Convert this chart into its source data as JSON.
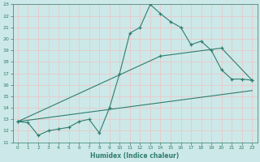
{
  "xlabel": "Humidex (Indice chaleur)",
  "xlim": [
    -0.5,
    23.5
  ],
  "ylim": [
    11,
    23
  ],
  "xticks": [
    0,
    1,
    2,
    3,
    4,
    5,
    6,
    7,
    8,
    9,
    10,
    11,
    12,
    13,
    14,
    15,
    16,
    17,
    18,
    19,
    20,
    21,
    22,
    23
  ],
  "yticks": [
    11,
    12,
    13,
    14,
    15,
    16,
    17,
    18,
    19,
    20,
    21,
    22,
    23
  ],
  "bg_color": "#cde8e8",
  "grid_color": "#e8c8c8",
  "line_color": "#2e7d6e",
  "lines": [
    {
      "x": [
        0,
        1,
        2,
        3,
        4,
        5,
        6,
        7,
        8,
        9,
        10,
        11,
        12,
        13,
        14,
        15,
        16,
        17,
        18,
        19,
        20,
        21,
        22,
        23
      ],
      "y": [
        12.8,
        12.7,
        11.6,
        12.0,
        12.15,
        12.3,
        12.8,
        13.0,
        11.8,
        14.0,
        17.0,
        20.5,
        21.0,
        23.0,
        22.2,
        21.5,
        21.0,
        19.5,
        19.8,
        19.0,
        17.3,
        16.5,
        16.5,
        16.4
      ],
      "markers": true
    },
    {
      "x": [
        0,
        14,
        20,
        23
      ],
      "y": [
        12.8,
        18.5,
        19.2,
        16.4
      ],
      "markers": true
    },
    {
      "x": [
        0,
        23
      ],
      "y": [
        12.8,
        15.5
      ],
      "markers": false
    }
  ]
}
